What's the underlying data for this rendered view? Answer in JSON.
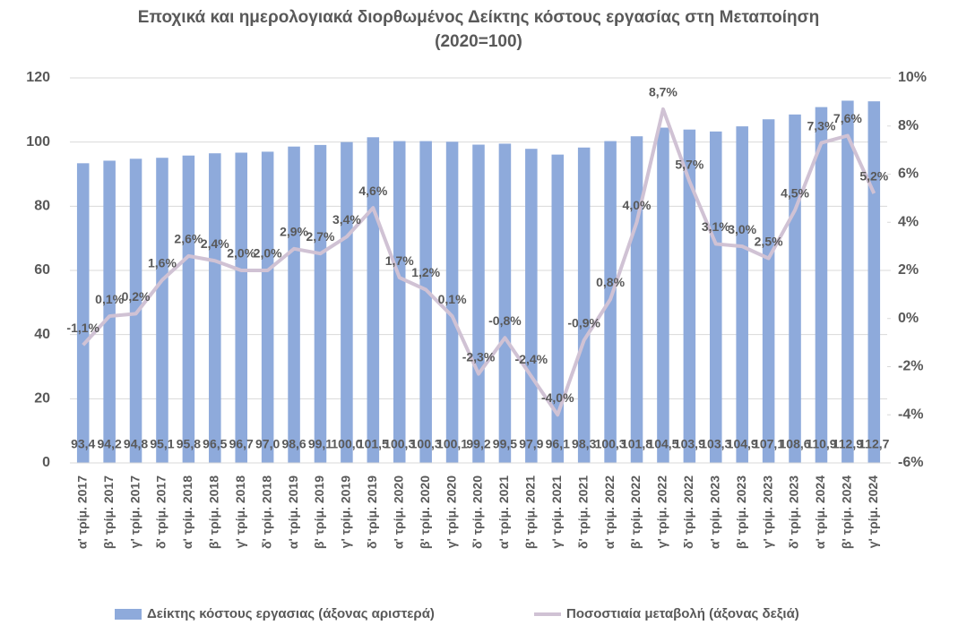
{
  "chart_data": {
    "type": "bar-line",
    "title": "Εποχικά και ημερολογιακά διορθωμένος Δείκτης κόστους εργασίας στη Μεταποίηση (2020=100)",
    "categories": [
      "α' τρίμ. 2017",
      "β' τρίμ. 2017",
      "γ' τρίμ. 2017",
      "δ' τρίμ. 2017",
      "α' τρίμ. 2018",
      "β' τρίμ. 2018",
      "γ' τρίμ. 2018",
      "δ' τρίμ. 2018",
      "α' τρίμ. 2019",
      "β' τρίμ. 2019",
      "γ' τρίμ. 2019",
      "δ' τρίμ. 2019",
      "α' τρίμ. 2020",
      "β' τρίμ. 2020",
      "γ' τρίμ. 2020",
      "δ' τρίμ. 2020",
      "α' τρίμ. 2021",
      "β' τρίμ. 2021",
      "γ' τρίμ. 2021",
      "δ' τρίμ. 2021",
      "α' τρίμ. 2022",
      "β' τρίμ. 2022",
      "γ' τρίμ. 2022",
      "δ' τρίμ. 2022",
      "α' τρίμ. 2023",
      "β' τρίμ. 2023",
      "γ' τρίμ. 2023",
      "δ' τρίμ. 2023",
      "α' τρίμ. 2024",
      "β' τρίμ. 2024",
      "γ' τρίμ. 2024"
    ],
    "series": [
      {
        "name": "Δείκτης κόστους εργασιας (άξονας αριστερά)",
        "type": "bar",
        "color": "#8eaadb",
        "values": [
          93.4,
          94.2,
          94.8,
          95.1,
          95.8,
          96.5,
          96.7,
          97.0,
          98.6,
          99.1,
          100.0,
          101.5,
          100.3,
          100.3,
          100.1,
          99.2,
          99.5,
          97.9,
          96.1,
          98.3,
          100.3,
          101.8,
          104.5,
          103.9,
          103.3,
          104.9,
          107.1,
          108.6,
          110.9,
          112.9,
          112.7
        ],
        "value_labels": [
          "93,4",
          "94,2",
          "94,8",
          "95,1",
          "95,8",
          "96,5",
          "96,7",
          "97,0",
          "98,6",
          "99,1",
          "100,0",
          "101,5",
          "100,3",
          "100,3",
          "100,1",
          "99,2",
          "99,5",
          "97,9",
          "96,1",
          "98,3",
          "100,3",
          "101,8",
          "104,5",
          "103,9",
          "103,3",
          "104,9",
          "107,1",
          "108,6",
          "110,9",
          "112,9",
          "112,7"
        ]
      },
      {
        "name": "Ποσοστιαία μεταβολή (άξονας δεξιά)",
        "type": "line",
        "axis": "y2",
        "color": "#d0c2d4",
        "values": [
          -1.1,
          0.1,
          0.2,
          1.6,
          2.6,
          2.4,
          2.0,
          2.0,
          2.9,
          2.7,
          3.4,
          4.6,
          1.7,
          1.2,
          0.1,
          -2.3,
          -0.8,
          -2.4,
          -4.0,
          -0.9,
          0.8,
          4.0,
          8.7,
          5.7,
          3.1,
          3.0,
          2.5,
          4.5,
          7.3,
          7.6,
          5.2
        ],
        "value_labels": [
          "-1,1%",
          "0,1%",
          "0,2%",
          "1,6%",
          "2,6%",
          "2,4%",
          "2,0%",
          "2,0%",
          "2,9%",
          "2,7%",
          "3,4%",
          "4,6%",
          "1,7%",
          "1,2%",
          "0,1%",
          "-2,3%",
          "-0,8%",
          "-2,4%",
          "-4,0%",
          "-0,9%",
          "0,8%",
          "4,0%",
          "8,7%",
          "5,7%",
          "3,1%",
          "3,0%",
          "2,5%",
          "4,5%",
          "7,3%",
          "7,6%",
          "5,2%"
        ]
      }
    ],
    "ylim": [
      0,
      120
    ],
    "yticks": [
      0,
      20,
      40,
      60,
      80,
      100,
      120
    ],
    "y2lim": [
      -6,
      10
    ],
    "y2ticks": [
      {
        "value": -6,
        "label": "-6%"
      },
      {
        "value": -4,
        "label": "-4%"
      },
      {
        "value": -2,
        "label": "-2%"
      },
      {
        "value": 0,
        "label": "0%"
      },
      {
        "value": 2,
        "label": "2%"
      },
      {
        "value": 4,
        "label": "4%"
      },
      {
        "value": 6,
        "label": "6%"
      },
      {
        "value": 8,
        "label": "8%"
      },
      {
        "value": 10,
        "label": "10%"
      }
    ],
    "grid": true,
    "legend": "bottom"
  }
}
